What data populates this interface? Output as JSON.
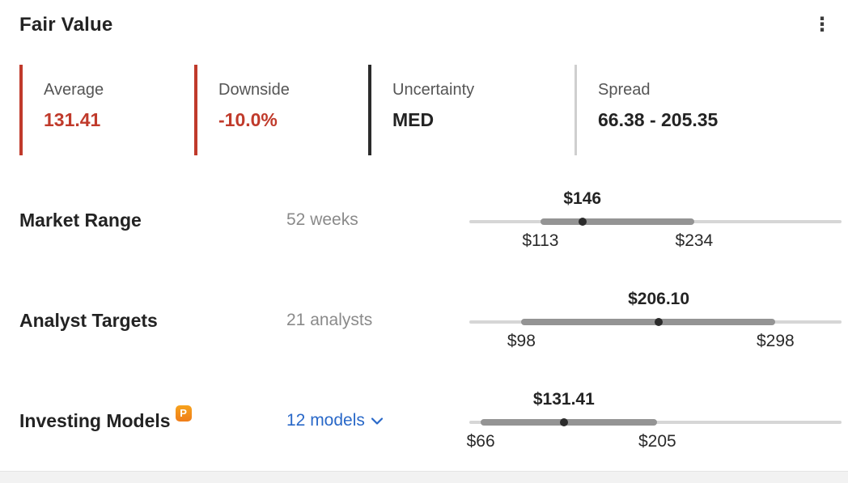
{
  "header": {
    "title": "Fair Value"
  },
  "colors": {
    "accent_red": "#c03a2b",
    "accent_dark": "#2b2b2b",
    "border_gray": "#cfcfcf",
    "link_blue": "#2968c8",
    "badge_orange": "#ef7d1a",
    "segment_gray": "#949494",
    "track_gray": "#d6d6d6"
  },
  "stats": [
    {
      "label": "Average",
      "value": "131.41"
    },
    {
      "label": "Downside",
      "value": "-10.0%"
    },
    {
      "label": "Uncertainty",
      "value": "MED"
    },
    {
      "label": "Spread",
      "value": "66.38 - 205.35"
    }
  ],
  "rows": [
    {
      "label": "Market Range",
      "sub": "52 weeks",
      "marker_label": "$146",
      "low_label": "$113",
      "high_label": "$234",
      "low": 113,
      "high": 234,
      "marker": 146
    },
    {
      "label": "Analyst Targets",
      "sub": "21 analysts",
      "marker_label": "$206.10",
      "low_label": "$98",
      "high_label": "$298",
      "low": 98,
      "high": 298,
      "marker": 206.1
    },
    {
      "label": "Investing Models",
      "sub": "12 models",
      "badge": "P",
      "marker_label": "$131.41",
      "low_label": "$66",
      "high_label": "$205",
      "low": 66,
      "high": 205,
      "marker": 131.41
    }
  ]
}
